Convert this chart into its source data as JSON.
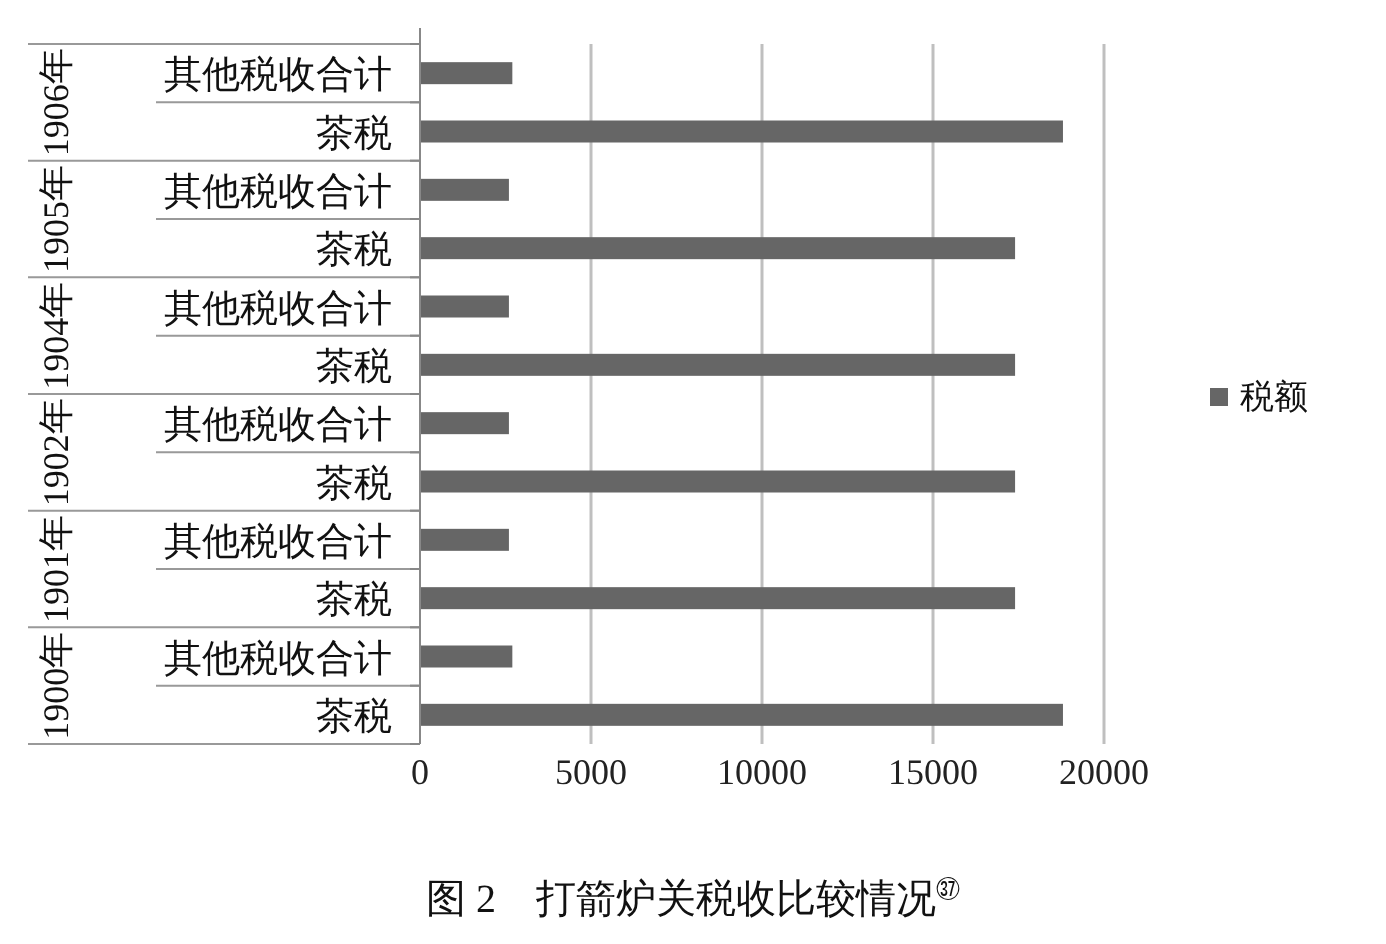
{
  "chart_data": {
    "type": "bar",
    "orientation": "horizontal",
    "title": "图 2　打箭炉关税收比较情况$^{㊲}$",
    "categories": [
      "其他税收合计",
      "茶税",
      "其他税收合计",
      "茶税",
      "其他税收合计",
      "茶税",
      "其他税收合计",
      "茶税",
      "其他税收合计",
      "茶税",
      "其他税收合计",
      "茶税"
    ],
    "series": [
      {
        "name": "税额",
        "color": "#666666",
        "values": [
          2700,
          18800,
          2600,
          17400,
          2600,
          17400,
          2600,
          17400,
          2600,
          17400,
          2700,
          18800
        ]
      }
    ],
    "annotations": [
      "1906年",
      "1905年",
      "1904年",
      "1902年",
      "1901年",
      "1900年"
    ],
    "xlim": [
      0,
      20000
    ],
    "xticks": [
      0,
      5000,
      10000,
      15000,
      20000
    ],
    "grid": "x",
    "legend": "right"
  }
}
